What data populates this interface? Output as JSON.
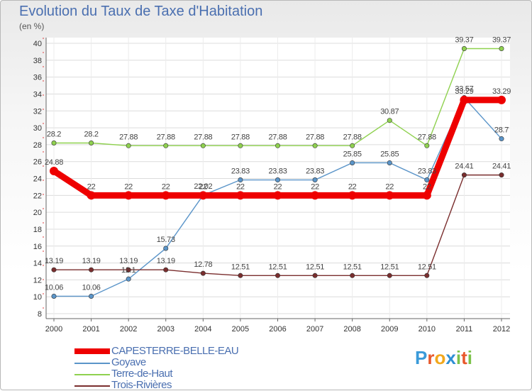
{
  "header": {
    "title": "Evolution du Taux de Taxe d'Habitation",
    "subtitle": "(en %)"
  },
  "logo": {
    "text": "Proxiti",
    "colors": [
      "#3a9ad9",
      "#e8582c",
      "#f2a81d",
      "#2e8fd4",
      "#7cc24a",
      "#e8582c",
      "#7cc24a"
    ]
  },
  "chart_data": {
    "type": "line",
    "title": "Evolution du Taux de Taxe d'Habitation",
    "ylabel": "(en %)",
    "xlabel": "",
    "x": [
      "2000",
      "2001",
      "2002",
      "2003",
      "2004",
      "2005",
      "2006",
      "2007",
      "2008",
      "2009",
      "2010",
      "2011",
      "2012"
    ],
    "ylim": [
      8,
      40
    ],
    "yticks": [
      8,
      10,
      12,
      14,
      16,
      18,
      20,
      22,
      24,
      26,
      28,
      30,
      32,
      34,
      36,
      38,
      40
    ],
    "grid": "horizontal",
    "legend_position": "bottom-left",
    "series": [
      {
        "name": "CAPESTERRE-BELLE-EAU",
        "color": "#ee0000",
        "values": [
          24.88,
          22,
          22,
          22,
          22,
          22,
          22,
          22,
          22,
          22,
          22,
          33.29,
          33.29
        ],
        "labels": [
          "24.88",
          "22",
          "22",
          "22",
          "22",
          "22",
          "22",
          "22",
          "22",
          "22",
          "22",
          "33.29",
          "33.29"
        ],
        "emphasis": true
      },
      {
        "name": "Goyave",
        "color": "#5b95c9",
        "values": [
          10.06,
          10.06,
          12.1,
          15.73,
          22.02,
          23.83,
          23.83,
          23.83,
          25.85,
          25.85,
          23.83,
          33.57,
          28.7
        ],
        "labels": [
          "10.06",
          "10.06",
          "12.1",
          "15.73",
          "22.02",
          "23.83",
          "23.83",
          "23.83",
          "25.85",
          "25.85",
          "23.83",
          "33.57",
          "28.7"
        ]
      },
      {
        "name": "Terre-de-Haut",
        "color": "#8fd14f",
        "values": [
          28.2,
          28.2,
          27.88,
          27.88,
          27.88,
          27.88,
          27.88,
          27.88,
          27.88,
          30.87,
          27.88,
          39.37,
          39.37
        ],
        "labels": [
          "28.2",
          "28.2",
          "27.88",
          "27.88",
          "27.88",
          "27.88",
          "27.88",
          "27.88",
          "27.88",
          "30.87",
          "27.88",
          "39.37",
          "39.37"
        ]
      },
      {
        "name": "Trois-Rivières",
        "color": "#7a2e2e",
        "values": [
          13.19,
          13.19,
          13.19,
          13.19,
          12.78,
          12.51,
          12.51,
          12.51,
          12.51,
          12.51,
          12.51,
          24.41,
          24.41
        ],
        "labels": [
          "13.19",
          "13.19",
          "13.19",
          "13.19",
          "12.78",
          "12.51",
          "12.51",
          "12.51",
          "12.51",
          "12.51",
          "12.51",
          "24.41",
          "24.41"
        ]
      }
    ]
  }
}
